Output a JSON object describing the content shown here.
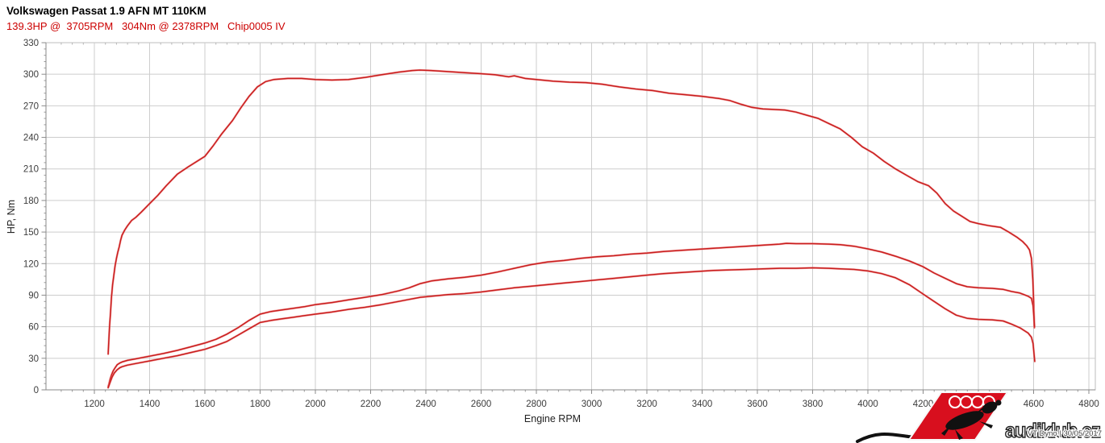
{
  "header": {
    "title": "Volkswagen Passat 1.9 AFN MT 110KM",
    "subtitle": "139.3HP @  3705RPM   304Nm @ 2378RPM   Chip0005 IV",
    "subtitle_color": "#cc0000"
  },
  "chart_data": {
    "type": "line",
    "xlabel": "Engine RPM",
    "ylabel": "HP, Nm",
    "xlim": [
      1025,
      4825
    ],
    "ylim": [
      0,
      330
    ],
    "x_ticks": [
      1200,
      1400,
      1600,
      1800,
      2000,
      2200,
      2400,
      2600,
      2800,
      3000,
      3200,
      3400,
      3600,
      3800,
      4000,
      4200,
      4400,
      4600,
      4800
    ],
    "y_ticks": [
      0,
      30,
      60,
      90,
      120,
      150,
      180,
      210,
      240,
      270,
      300,
      330
    ],
    "x_minor_step": 40,
    "y_minor_step": 6,
    "grid": true,
    "line_color": "#c81e1e",
    "line_halo_color": "#f08080",
    "peak_power": {
      "value_hp": 139.3,
      "at_rpm": 3705
    },
    "peak_torque": {
      "value_nm": 304,
      "at_rpm": 2378
    },
    "series": [
      {
        "name": "torque-nm",
        "points": [
          [
            1250,
            34
          ],
          [
            1252,
            45
          ],
          [
            1255,
            60
          ],
          [
            1258,
            72
          ],
          [
            1262,
            88
          ],
          [
            1266,
            100
          ],
          [
            1270,
            108
          ],
          [
            1275,
            118
          ],
          [
            1280,
            125
          ],
          [
            1285,
            131
          ],
          [
            1290,
            136
          ],
          [
            1295,
            142
          ],
          [
            1300,
            147
          ],
          [
            1310,
            152
          ],
          [
            1320,
            156
          ],
          [
            1335,
            161
          ],
          [
            1350,
            164
          ],
          [
            1370,
            169
          ],
          [
            1400,
            177
          ],
          [
            1430,
            185
          ],
          [
            1460,
            194
          ],
          [
            1500,
            205
          ],
          [
            1540,
            212
          ],
          [
            1570,
            217
          ],
          [
            1600,
            222
          ],
          [
            1630,
            232
          ],
          [
            1660,
            243
          ],
          [
            1700,
            256
          ],
          [
            1730,
            268
          ],
          [
            1760,
            279
          ],
          [
            1790,
            288
          ],
          [
            1820,
            293
          ],
          [
            1850,
            295
          ],
          [
            1900,
            296
          ],
          [
            1950,
            296
          ],
          [
            2000,
            295
          ],
          [
            2060,
            294.5
          ],
          [
            2120,
            295
          ],
          [
            2180,
            297
          ],
          [
            2240,
            299.5
          ],
          [
            2300,
            302
          ],
          [
            2350,
            303.5
          ],
          [
            2378,
            304
          ],
          [
            2420,
            303.5
          ],
          [
            2480,
            302.5
          ],
          [
            2540,
            301.5
          ],
          [
            2600,
            300.5
          ],
          [
            2650,
            299.5
          ],
          [
            2700,
            297.5
          ],
          [
            2720,
            298.5
          ],
          [
            2760,
            296
          ],
          [
            2800,
            295
          ],
          [
            2860,
            293.5
          ],
          [
            2920,
            292.5
          ],
          [
            2980,
            292
          ],
          [
            3040,
            290.5
          ],
          [
            3100,
            288
          ],
          [
            3160,
            286
          ],
          [
            3220,
            284.5
          ],
          [
            3280,
            282
          ],
          [
            3340,
            280.5
          ],
          [
            3400,
            279
          ],
          [
            3460,
            277
          ],
          [
            3500,
            275
          ],
          [
            3540,
            271.5
          ],
          [
            3580,
            268.5
          ],
          [
            3620,
            267
          ],
          [
            3660,
            266.5
          ],
          [
            3700,
            266
          ],
          [
            3740,
            264
          ],
          [
            3780,
            261
          ],
          [
            3820,
            258
          ],
          [
            3860,
            253
          ],
          [
            3900,
            248
          ],
          [
            3940,
            240
          ],
          [
            3980,
            231
          ],
          [
            4020,
            225
          ],
          [
            4060,
            217
          ],
          [
            4100,
            210
          ],
          [
            4140,
            204
          ],
          [
            4180,
            198
          ],
          [
            4220,
            194
          ],
          [
            4250,
            187
          ],
          [
            4280,
            177
          ],
          [
            4310,
            170
          ],
          [
            4340,
            165
          ],
          [
            4370,
            160
          ],
          [
            4400,
            158
          ],
          [
            4440,
            156
          ],
          [
            4480,
            154.5
          ],
          [
            4510,
            150
          ],
          [
            4540,
            145
          ],
          [
            4560,
            141
          ],
          [
            4575,
            137
          ],
          [
            4585,
            133
          ],
          [
            4592,
            125
          ],
          [
            4597,
            105
          ],
          [
            4600,
            85
          ],
          [
            4603,
            59
          ]
        ]
      },
      {
        "name": "power-hp",
        "points": [
          [
            1250,
            3
          ],
          [
            1253,
            6
          ],
          [
            1257,
            10
          ],
          [
            1262,
            14
          ],
          [
            1268,
            18
          ],
          [
            1275,
            21
          ],
          [
            1283,
            24
          ],
          [
            1292,
            25.5
          ],
          [
            1300,
            26.5
          ],
          [
            1320,
            28
          ],
          [
            1350,
            29.5
          ],
          [
            1400,
            32
          ],
          [
            1450,
            34.5
          ],
          [
            1500,
            37.5
          ],
          [
            1550,
            41
          ],
          [
            1600,
            44.5
          ],
          [
            1640,
            48
          ],
          [
            1680,
            53
          ],
          [
            1720,
            59
          ],
          [
            1760,
            66
          ],
          [
            1800,
            72
          ],
          [
            1840,
            74.5
          ],
          [
            1880,
            76
          ],
          [
            1920,
            77.5
          ],
          [
            1960,
            79
          ],
          [
            2000,
            81
          ],
          [
            2060,
            83
          ],
          [
            2120,
            85.5
          ],
          [
            2180,
            88
          ],
          [
            2240,
            90.5
          ],
          [
            2300,
            94
          ],
          [
            2340,
            97
          ],
          [
            2380,
            101
          ],
          [
            2420,
            103.5
          ],
          [
            2480,
            105.5
          ],
          [
            2540,
            107
          ],
          [
            2600,
            109
          ],
          [
            2660,
            112
          ],
          [
            2720,
            115.5
          ],
          [
            2780,
            119
          ],
          [
            2840,
            121.5
          ],
          [
            2900,
            123
          ],
          [
            2960,
            125
          ],
          [
            3020,
            126.5
          ],
          [
            3080,
            127.5
          ],
          [
            3140,
            129
          ],
          [
            3200,
            130
          ],
          [
            3260,
            131.5
          ],
          [
            3320,
            132.5
          ],
          [
            3380,
            133.5
          ],
          [
            3440,
            134.5
          ],
          [
            3500,
            135.5
          ],
          [
            3560,
            136.5
          ],
          [
            3620,
            137.5
          ],
          [
            3680,
            138.5
          ],
          [
            3705,
            139.3
          ],
          [
            3740,
            139
          ],
          [
            3800,
            139
          ],
          [
            3860,
            138.5
          ],
          [
            3900,
            138
          ],
          [
            3950,
            136.5
          ],
          [
            4000,
            134
          ],
          [
            4050,
            131
          ],
          [
            4100,
            127
          ],
          [
            4150,
            122.5
          ],
          [
            4200,
            117
          ],
          [
            4240,
            111
          ],
          [
            4280,
            106
          ],
          [
            4320,
            101
          ],
          [
            4360,
            98
          ],
          [
            4400,
            97
          ],
          [
            4450,
            96.5
          ],
          [
            4490,
            95.5
          ],
          [
            4520,
            93.5
          ],
          [
            4550,
            92
          ],
          [
            4580,
            89
          ],
          [
            4592,
            87
          ],
          [
            4598,
            80
          ],
          [
            4601,
            70
          ],
          [
            4603,
            60
          ]
        ]
      },
      {
        "name": "power-secondary",
        "points": [
          [
            1250,
            2
          ],
          [
            1254,
            5
          ],
          [
            1258,
            8
          ],
          [
            1264,
            12
          ],
          [
            1272,
            16
          ],
          [
            1282,
            19
          ],
          [
            1292,
            21
          ],
          [
            1300,
            22
          ],
          [
            1320,
            23.5
          ],
          [
            1350,
            25
          ],
          [
            1400,
            27.5
          ],
          [
            1450,
            30
          ],
          [
            1500,
            32.5
          ],
          [
            1550,
            35.5
          ],
          [
            1600,
            38.5
          ],
          [
            1640,
            42
          ],
          [
            1680,
            46
          ],
          [
            1720,
            52
          ],
          [
            1760,
            58
          ],
          [
            1800,
            64
          ],
          [
            1840,
            66
          ],
          [
            1880,
            67.5
          ],
          [
            1920,
            69
          ],
          [
            1960,
            70.5
          ],
          [
            2000,
            72
          ],
          [
            2060,
            74
          ],
          [
            2120,
            76.5
          ],
          [
            2180,
            78.5
          ],
          [
            2240,
            81
          ],
          [
            2300,
            84
          ],
          [
            2340,
            86
          ],
          [
            2380,
            88
          ],
          [
            2420,
            89
          ],
          [
            2480,
            90.5
          ],
          [
            2540,
            91.5
          ],
          [
            2600,
            93
          ],
          [
            2660,
            95
          ],
          [
            2720,
            97
          ],
          [
            2780,
            98.5
          ],
          [
            2840,
            100
          ],
          [
            2900,
            101.5
          ],
          [
            2960,
            103
          ],
          [
            3020,
            104.5
          ],
          [
            3080,
            106
          ],
          [
            3140,
            107.5
          ],
          [
            3200,
            109
          ],
          [
            3260,
            110.5
          ],
          [
            3320,
            111.5
          ],
          [
            3380,
            112.5
          ],
          [
            3440,
            113.5
          ],
          [
            3500,
            114
          ],
          [
            3560,
            114.5
          ],
          [
            3620,
            115
          ],
          [
            3680,
            115.5
          ],
          [
            3740,
            115.5
          ],
          [
            3800,
            116
          ],
          [
            3860,
            115.5
          ],
          [
            3900,
            115
          ],
          [
            3950,
            114.5
          ],
          [
            4000,
            113
          ],
          [
            4050,
            110.5
          ],
          [
            4100,
            106.5
          ],
          [
            4150,
            100
          ],
          [
            4200,
            91
          ],
          [
            4240,
            84
          ],
          [
            4280,
            77
          ],
          [
            4320,
            71
          ],
          [
            4360,
            68
          ],
          [
            4400,
            67
          ],
          [
            4450,
            66.5
          ],
          [
            4490,
            65.5
          ],
          [
            4520,
            62.5
          ],
          [
            4550,
            59
          ],
          [
            4580,
            54
          ],
          [
            4592,
            50
          ],
          [
            4598,
            44
          ],
          [
            4601,
            36
          ],
          [
            4604,
            27
          ]
        ]
      }
    ]
  },
  "watermark": {
    "brand": "audiklub.cz",
    "caption": "VT Dyno | 30/05/2017",
    "logo_red": "#d80f1e"
  }
}
